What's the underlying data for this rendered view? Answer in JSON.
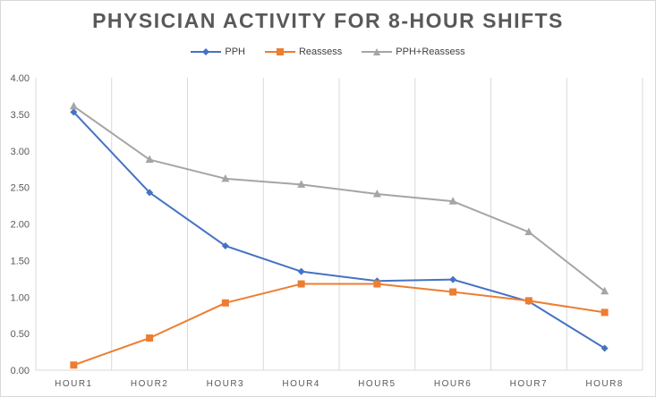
{
  "chart_data": {
    "type": "line",
    "title": "PHYSICIAN ACTIVITY FOR 8-HOUR SHIFTS",
    "categories": [
      "HOUR1",
      "HOUR2",
      "HOUR3",
      "HOUR4",
      "HOUR5",
      "HOUR6",
      "HOUR7",
      "HOUR8"
    ],
    "series": [
      {
        "name": "PPH",
        "color": "#4472c4",
        "marker": "diamond",
        "values": [
          3.53,
          2.43,
          1.7,
          1.35,
          1.22,
          1.24,
          0.94,
          0.3
        ]
      },
      {
        "name": "Reassess",
        "color": "#ed7d31",
        "marker": "square",
        "values": [
          0.07,
          0.44,
          0.92,
          1.18,
          1.18,
          1.07,
          0.95,
          0.79
        ]
      },
      {
        "name": "PPH+Reassess",
        "color": "#a5a5a5",
        "marker": "triangle",
        "values": [
          3.61,
          2.88,
          2.62,
          2.54,
          2.41,
          2.31,
          1.89,
          1.08
        ]
      }
    ],
    "ylim": [
      0,
      4
    ],
    "yticks": [
      "0.00",
      "0.50",
      "1.00",
      "1.50",
      "2.00",
      "2.50",
      "3.00",
      "3.50",
      "4.00"
    ],
    "xlabel": "",
    "ylabel": "",
    "grid": "vertical category lines",
    "legend_position": "top"
  }
}
